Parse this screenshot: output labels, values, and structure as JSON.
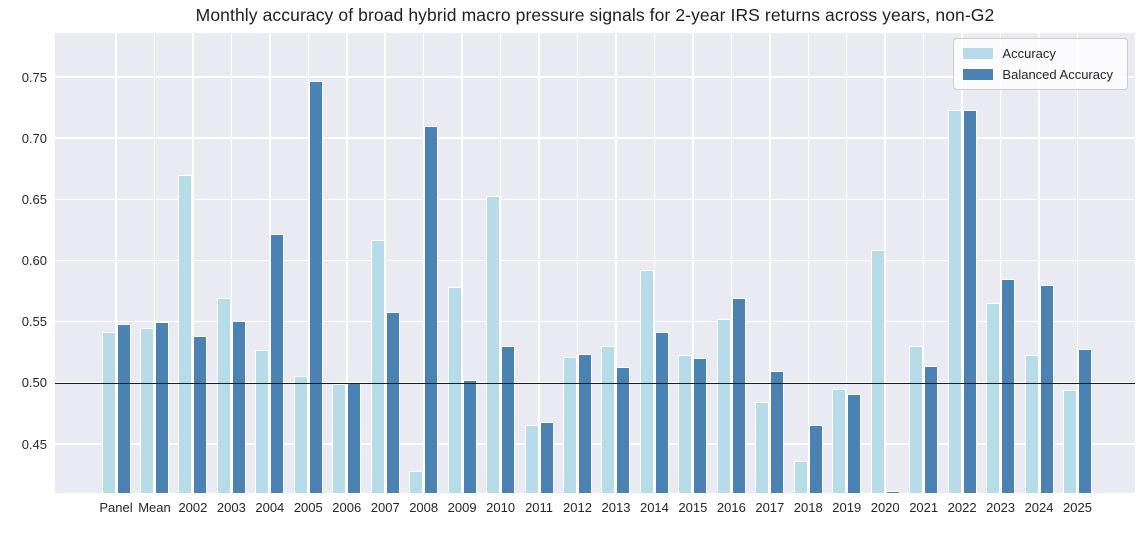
{
  "title": "Monthly accuracy of broad hybrid macro pressure signals for 2-year IRS returns across years, non-G2",
  "colors": {
    "plot_background": "#eaeaf2",
    "grid": "#ffffff",
    "baseline": "#1c1c1c",
    "accuracy": "#b5dce8",
    "balanced_accuracy": "#4a82b4",
    "tick_text": "#262626"
  },
  "legend": {
    "items": [
      {
        "label": "Accuracy",
        "color": "#b5dce8"
      },
      {
        "label": "Balanced Accuracy",
        "color": "#4a82b4"
      }
    ]
  },
  "chart_data": {
    "type": "bar",
    "title": "Monthly accuracy of broad hybrid macro pressure signals for 2-year IRS returns across years, non-G2",
    "categories": [
      "Panel",
      "Mean",
      "2002",
      "2003",
      "2004",
      "2005",
      "2006",
      "2007",
      "2008",
      "2009",
      "2010",
      "2011",
      "2012",
      "2013",
      "2014",
      "2015",
      "2016",
      "2017",
      "2018",
      "2019",
      "2020",
      "2021",
      "2022",
      "2023",
      "2024",
      "2025"
    ],
    "series": [
      {
        "name": "Accuracy",
        "color": "#b5dce8",
        "values": [
          0.542,
          0.545,
          0.67,
          0.569,
          0.527,
          0.506,
          0.499,
          0.617,
          0.428,
          0.578,
          0.653,
          0.466,
          0.521,
          0.53,
          0.592,
          0.523,
          0.552,
          0.484,
          0.436,
          0.495,
          0.609,
          0.53,
          0.723,
          0.565,
          0.523,
          0.494
        ]
      },
      {
        "name": "Balanced Accuracy",
        "color": "#4a82b4",
        "values": [
          0.548,
          0.55,
          0.538,
          0.551,
          0.622,
          0.747,
          0.5,
          0.558,
          0.71,
          0.502,
          0.53,
          0.468,
          0.524,
          0.513,
          0.542,
          0.52,
          0.569,
          0.51,
          0.466,
          0.491,
          0.412,
          0.514,
          0.723,
          0.585,
          0.58,
          0.528
        ]
      }
    ],
    "xlabel": "",
    "ylabel": "",
    "ylim": [
      0.41,
      0.786
    ],
    "yticks": [
      0.45,
      0.5,
      0.55,
      0.6,
      0.65,
      0.7,
      0.75
    ],
    "baseline": 0.5,
    "grid": true,
    "legend_position": "upper right"
  }
}
